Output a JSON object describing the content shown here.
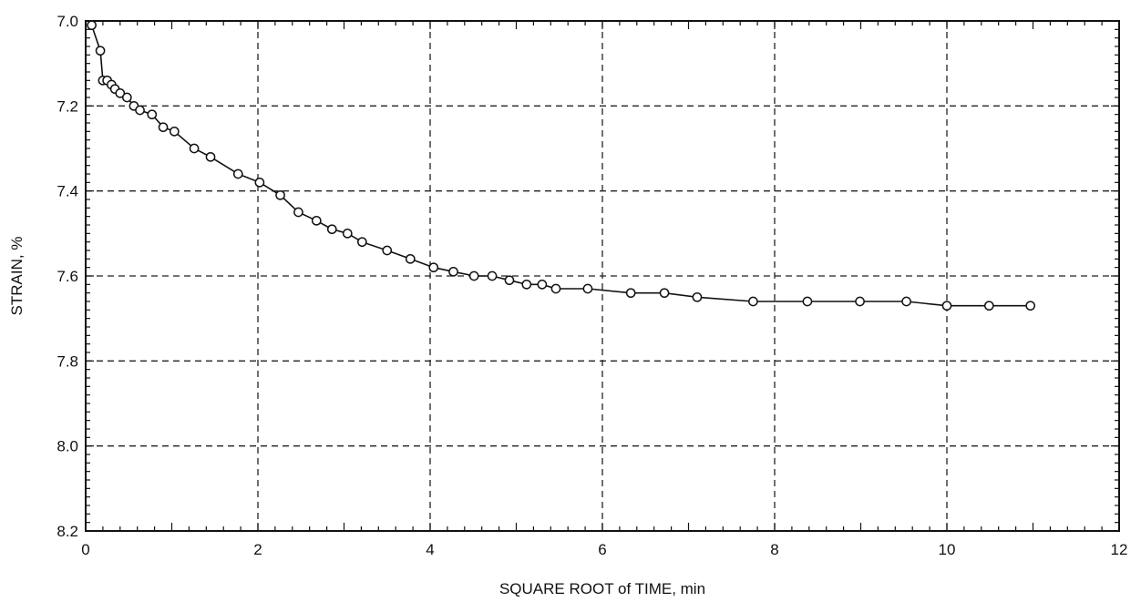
{
  "chart_data": {
    "type": "line",
    "title": "",
    "xlabel": "SQUARE ROOT of TIME, min",
    "ylabel": "STRAIN, %",
    "xlim": [
      0,
      12
    ],
    "ylim": [
      7.0,
      8.2
    ],
    "y_inverted": true,
    "x_ticks": [
      0,
      2,
      4,
      6,
      8,
      10,
      12
    ],
    "x_tick_labels": [
      "0",
      "2",
      "4",
      "6",
      "8",
      "10",
      "12"
    ],
    "y_ticks": [
      7.0,
      7.2,
      7.4,
      7.6,
      7.8,
      8.0,
      8.2
    ],
    "y_tick_labels": [
      "7.0",
      "7.2",
      "7.4",
      "7.6",
      "7.8",
      "8.0",
      "8.2"
    ],
    "grid": true,
    "marker": "circle",
    "series": [
      {
        "x": [
          0.07,
          0.17,
          0.2,
          0.25,
          0.3,
          0.34,
          0.4,
          0.48,
          0.56,
          0.63,
          0.77,
          0.9,
          1.03,
          1.26,
          1.45,
          1.77,
          2.02,
          2.26,
          2.47,
          2.68,
          2.86,
          3.04,
          3.21,
          3.5,
          3.77,
          4.04,
          4.27,
          4.51,
          4.72,
          4.92,
          5.12,
          5.3,
          5.46,
          5.83,
          6.33,
          6.72,
          7.1,
          7.75,
          8.38,
          8.99,
          9.53,
          10.0,
          10.49,
          10.97
        ],
        "y": [
          7.01,
          7.07,
          7.14,
          7.14,
          7.15,
          7.16,
          7.17,
          7.18,
          7.2,
          7.21,
          7.22,
          7.25,
          7.26,
          7.3,
          7.32,
          7.36,
          7.38,
          7.41,
          7.45,
          7.47,
          7.49,
          7.5,
          7.52,
          7.54,
          7.56,
          7.58,
          7.59,
          7.6,
          7.6,
          7.61,
          7.62,
          7.62,
          7.63,
          7.63,
          7.64,
          7.64,
          7.65,
          7.66,
          7.66,
          7.66,
          7.66,
          7.67,
          7.67,
          7.67
        ]
      }
    ]
  },
  "colors": {
    "line": "#111111",
    "grid": "#222222",
    "axis": "#111111",
    "background": "#ffffff"
  }
}
